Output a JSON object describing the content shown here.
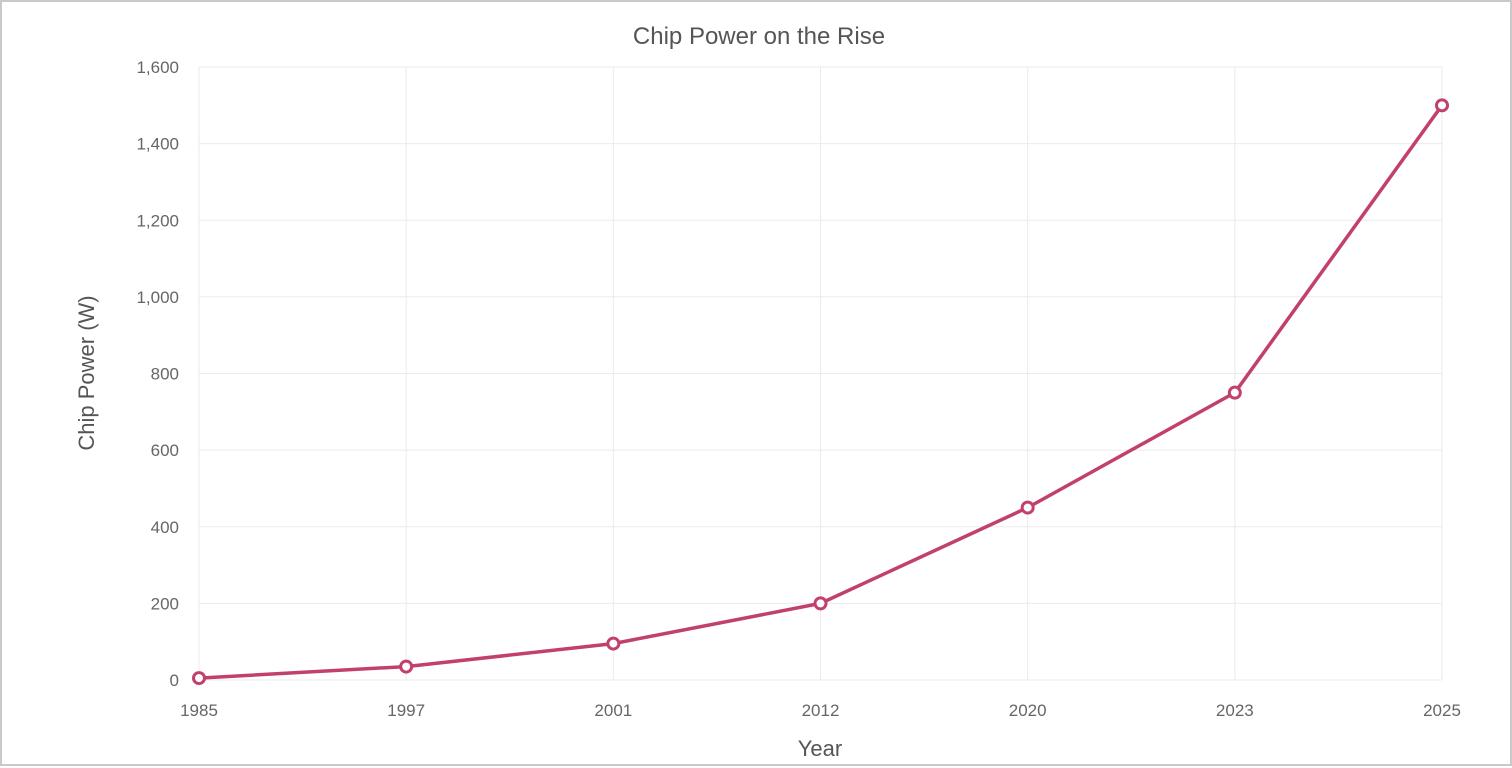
{
  "chart_data": {
    "type": "line",
    "title": "Chip Power on the Rise",
    "xlabel": "Year",
    "ylabel": "Chip Power (W)",
    "categories": [
      "1985",
      "1997",
      "2001",
      "2012",
      "2020",
      "2023",
      "2025"
    ],
    "series": [
      {
        "values": [
          5,
          35,
          95,
          200,
          450,
          750,
          1500
        ],
        "color": "#c2416c"
      }
    ],
    "ylim": [
      0,
      1600
    ],
    "yticks": [
      0,
      200,
      400,
      600,
      800,
      1000,
      1200,
      1400,
      1600
    ],
    "ytick_labels": [
      "0",
      "200",
      "400",
      "600",
      "800",
      "1,000",
      "1,200",
      "1,400",
      "1,600"
    ],
    "grid": true,
    "legend": "none"
  }
}
